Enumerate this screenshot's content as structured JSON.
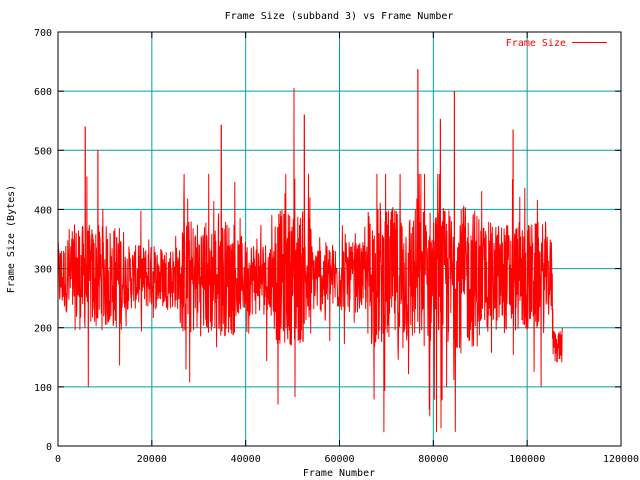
{
  "chart_data": {
    "type": "line",
    "title": "Frame Size (subband 3) vs Frame Number",
    "xlabel": "Frame Number",
    "ylabel": "Frame Size (Bytes)",
    "xlim": [
      0,
      120000
    ],
    "ylim": [
      0,
      700
    ],
    "x_ticks": [
      0,
      20000,
      40000,
      60000,
      80000,
      100000,
      120000
    ],
    "x_tick_labels": [
      "0",
      "20000",
      "40000",
      "60000",
      "80000",
      "100000",
      "120000"
    ],
    "y_ticks": [
      0,
      100,
      200,
      300,
      400,
      500,
      600,
      700
    ],
    "y_tick_labels": [
      "0",
      "100",
      "200",
      "300",
      "400",
      "500",
      "600",
      "700"
    ],
    "grid": true,
    "grid_color": "#00a0a0",
    "legend": "top-right",
    "series": [
      {
        "name": "Frame Size",
        "color": "#ff0000",
        "x_range": [
          0,
          107500
        ],
        "mean": 285,
        "min": 0,
        "max": 637,
        "peaks": [
          {
            "x": 5800,
            "y": 540
          },
          {
            "x": 8500,
            "y": 500
          },
          {
            "x": 34800,
            "y": 543
          },
          {
            "x": 50300,
            "y": 605
          },
          {
            "x": 52500,
            "y": 560
          },
          {
            "x": 76700,
            "y": 637
          },
          {
            "x": 81500,
            "y": 553
          },
          {
            "x": 84500,
            "y": 600
          },
          {
            "x": 97000,
            "y": 535
          }
        ]
      }
    ]
  }
}
